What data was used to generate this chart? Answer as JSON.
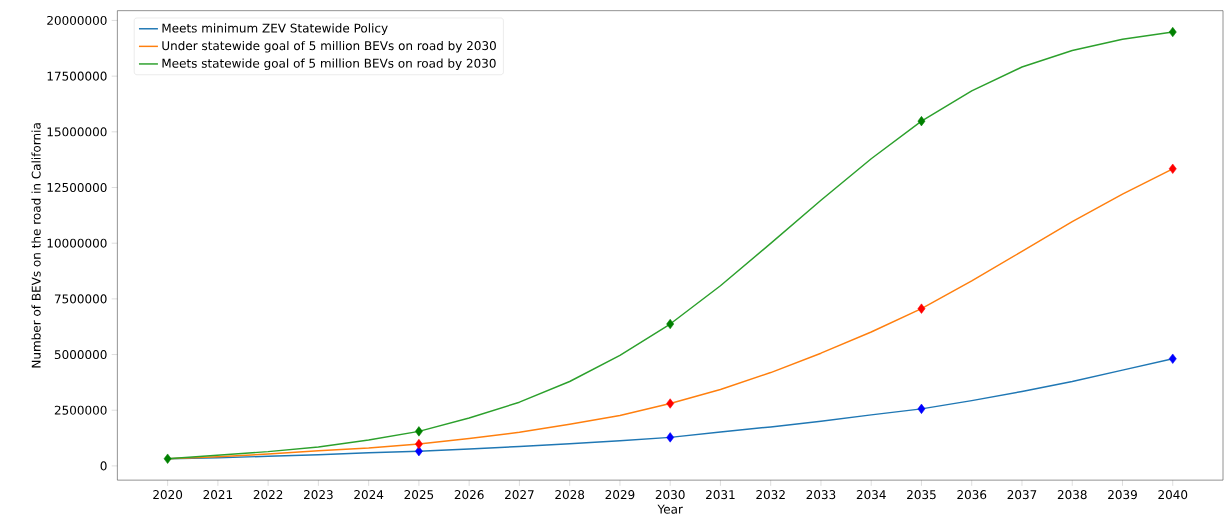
{
  "chart_data": {
    "type": "line",
    "xlabel": "Year",
    "ylabel": "Number of BEVs on the road in California",
    "x": [
      2020,
      2021,
      2022,
      2023,
      2024,
      2025,
      2026,
      2027,
      2028,
      2029,
      2030,
      2031,
      2032,
      2033,
      2034,
      2035,
      2036,
      2037,
      2038,
      2039,
      2040
    ],
    "series": [
      {
        "name": "Meets minimum ZEV Statewide Policy",
        "color": "#1f77b4",
        "values": [
          320000,
          370000,
          430000,
          500000,
          590000,
          660000,
          760000,
          870000,
          990000,
          1130000,
          1280000,
          1520000,
          1750000,
          2000000,
          2290000,
          2560000,
          2930000,
          3340000,
          3790000,
          4300000,
          4810000
        ]
      },
      {
        "name": "Under statewide goal of 5 million BEVs on road by 2030",
        "color": "#ff7f0e",
        "values": [
          320000,
          410000,
          530000,
          680000,
          800000,
          980000,
          1230000,
          1510000,
          1870000,
          2260000,
          2800000,
          3430000,
          4190000,
          5060000,
          6010000,
          7060000,
          8310000,
          9630000,
          10970000,
          12200000,
          13340000
        ]
      },
      {
        "name": "Meets statewide goal of 5 million BEVs on road by 2030",
        "color": "#2ca02c",
        "values": [
          320000,
          480000,
          640000,
          850000,
          1160000,
          1550000,
          2150000,
          2860000,
          3790000,
          4960000,
          6370000,
          8090000,
          9990000,
          11930000,
          13790000,
          15480000,
          16840000,
          17910000,
          18650000,
          19160000,
          19480000
        ]
      },
      {
        "type": "scatter",
        "marker": "diamond",
        "color": "#0000ff",
        "x": [
          2025,
          2030,
          2035,
          2040
        ],
        "values": [
          660000,
          1280000,
          2560000,
          4810000
        ]
      },
      {
        "type": "scatter",
        "marker": "diamond",
        "color": "#ff0000",
        "x": [
          2025,
          2030,
          2035,
          2040
        ],
        "values": [
          980000,
          2800000,
          7060000,
          13340000
        ]
      },
      {
        "type": "scatter",
        "marker": "diamond",
        "color": "#008000",
        "x": [
          2020,
          2025,
          2030,
          2035,
          2040
        ],
        "values": [
          320000,
          1550000,
          6370000,
          15480000,
          19480000
        ]
      }
    ],
    "xlim": [
      2019,
      2041
    ],
    "ylim": [
      -640000,
      20440000
    ],
    "xticks": [
      2020,
      2021,
      2022,
      2023,
      2024,
      2025,
      2026,
      2027,
      2028,
      2029,
      2030,
      2031,
      2032,
      2033,
      2034,
      2035,
      2036,
      2037,
      2038,
      2039,
      2040
    ],
    "yticks": [
      0,
      2500000,
      5000000,
      7500000,
      10000000,
      12500000,
      15000000,
      17500000,
      20000000
    ],
    "legend": "top left",
    "grid": false,
    "marker": "none",
    "line_style": "solid"
  }
}
